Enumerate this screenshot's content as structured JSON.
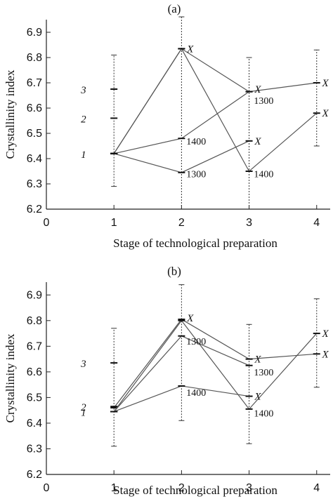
{
  "chart_data": [
    {
      "type": "line",
      "title": "(a)",
      "xlabel": "Stage of technological preparation",
      "ylabel": "Crystallinity index",
      "xlim": [
        0,
        4.2
      ],
      "ylim": [
        6.2,
        6.95
      ],
      "xticks": [
        0,
        1,
        2,
        3,
        4
      ],
      "yticks": [
        6.2,
        6.3,
        6.4,
        6.5,
        6.6,
        6.7,
        6.8,
        6.9
      ],
      "xtick_labels": [
        "0",
        "1",
        "2",
        "3",
        "4"
      ],
      "ytick_labels": [
        "6.2",
        "6.3",
        "6.4",
        "6.5",
        "6.6",
        "6.7",
        "6.8",
        "6.9"
      ],
      "series": [
        {
          "x": [
            1,
            2,
            3,
            4
          ],
          "y": [
            6.42,
            6.835,
            6.665,
            6.7
          ]
        },
        {
          "x": [
            1,
            2,
            3,
            4
          ],
          "y": [
            6.42,
            6.835,
            6.35,
            6.58
          ]
        },
        {
          "x": [
            1,
            2,
            3
          ],
          "y": [
            6.42,
            6.48,
            6.665
          ]
        },
        {
          "x": [
            1,
            2,
            3
          ],
          "y": [
            6.42,
            6.345,
            6.47
          ]
        }
      ],
      "stage1_points": [
        {
          "label": "3",
          "y": 6.675
        },
        {
          "label": "2",
          "y": 6.56
        },
        {
          "label": "1",
          "y": 6.42
        }
      ],
      "error_bars": [
        {
          "x": 1,
          "low": 6.29,
          "high": 6.81
        },
        {
          "x": 2,
          "low": 6.2,
          "high": 6.97
        },
        {
          "x": 3,
          "low": 6.2,
          "high": 6.8
        },
        {
          "x": 4,
          "low": 6.45,
          "high": 6.83
        }
      ],
      "annotations": [
        {
          "text": "X",
          "x": 2.06,
          "y": 6.835
        },
        {
          "text": "X",
          "x": 3.06,
          "y": 6.675
        },
        {
          "text": "X",
          "x": 4.06,
          "y": 6.7
        },
        {
          "text": "X",
          "x": 3.06,
          "y": 6.47
        },
        {
          "text": "X",
          "x": 4.06,
          "y": 6.58
        },
        {
          "text": "1400",
          "x": 2.05,
          "y": 6.47
        },
        {
          "text": "1300",
          "x": 2.05,
          "y": 6.34
        },
        {
          "text": "1300",
          "x": 3.05,
          "y": 6.63
        },
        {
          "text": "1400",
          "x": 3.05,
          "y": 6.34
        }
      ]
    },
    {
      "type": "line",
      "title": "(b)",
      "xlabel": "Stage of technological preparation",
      "ylabel": "Crystallinity index",
      "xlim": [
        0,
        4.2
      ],
      "ylim": [
        6.2,
        6.95
      ],
      "xticks": [
        0,
        1,
        2,
        3,
        4
      ],
      "yticks": [
        6.2,
        6.3,
        6.4,
        6.5,
        6.6,
        6.7,
        6.8,
        6.9
      ],
      "xtick_labels": [
        "0",
        "1",
        "2",
        "3",
        "4"
      ],
      "ytick_labels": [
        "6.2",
        "6.3",
        "6.4",
        "6.5",
        "6.6",
        "6.7",
        "6.8",
        "6.9"
      ],
      "series": [
        {
          "x": [
            1,
            2,
            3,
            4
          ],
          "y": [
            6.46,
            6.805,
            6.65,
            6.67
          ]
        },
        {
          "x": [
            1,
            2,
            3,
            4
          ],
          "y": [
            6.445,
            6.8,
            6.455,
            6.75
          ]
        },
        {
          "x": [
            1,
            2,
            3
          ],
          "y": [
            6.445,
            6.74,
            6.625
          ]
        },
        {
          "x": [
            1,
            2,
            3
          ],
          "y": [
            6.445,
            6.545,
            6.505
          ]
        }
      ],
      "stage1_points": [
        {
          "label": "3",
          "y": 6.635
        },
        {
          "label": "2",
          "y": 6.465
        },
        {
          "label": "1",
          "y": 6.445
        }
      ],
      "error_bars": [
        {
          "x": 1,
          "low": 6.31,
          "high": 6.77
        },
        {
          "x": 2,
          "low": 6.41,
          "high": 6.94
        },
        {
          "x": 3,
          "low": 6.32,
          "high": 6.785
        },
        {
          "x": 4,
          "low": 6.54,
          "high": 6.885
        }
      ],
      "annotations": [
        {
          "text": "X",
          "x": 2.06,
          "y": 6.81
        },
        {
          "text": "X",
          "x": 3.06,
          "y": 6.65
        },
        {
          "text": "X",
          "x": 4.06,
          "y": 6.75
        },
        {
          "text": "X",
          "x": 4.06,
          "y": 6.67
        },
        {
          "text": "X",
          "x": 3.06,
          "y": 6.505
        },
        {
          "text": "1300",
          "x": 2.05,
          "y": 6.72
        },
        {
          "text": "1400",
          "x": 2.05,
          "y": 6.52
        },
        {
          "text": "1300",
          "x": 3.05,
          "y": 6.6
        },
        {
          "text": "1400",
          "x": 3.05,
          "y": 6.44
        }
      ]
    }
  ]
}
